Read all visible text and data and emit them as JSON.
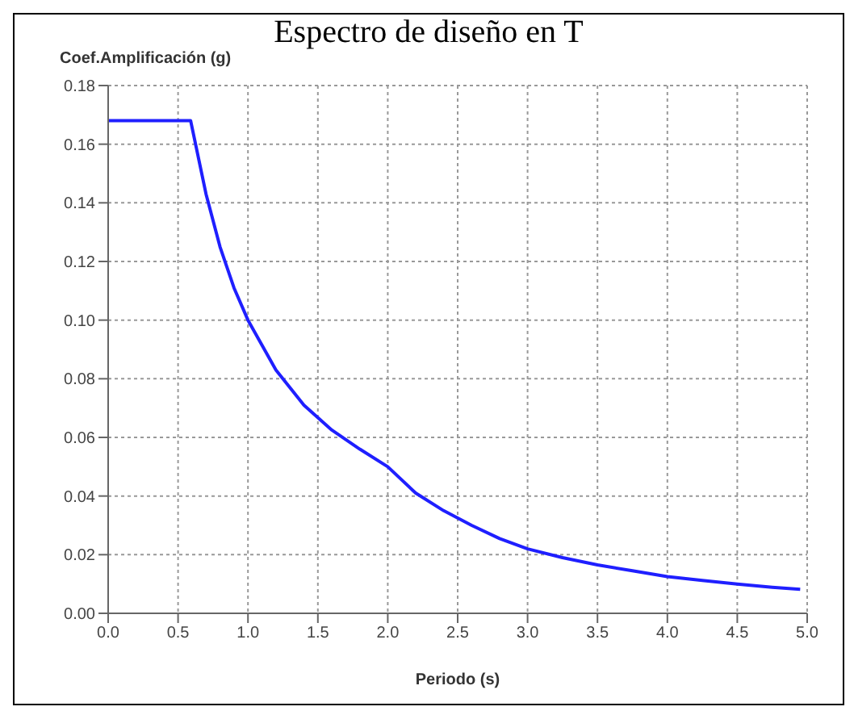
{
  "chart_data": {
    "type": "line",
    "title": "Espectro de diseño en T",
    "ylabel": "Coef.Amplificación (g)",
    "xlabel": "Periodo (s)",
    "x": [
      0,
      0.59,
      0.7,
      0.8,
      0.9,
      1.0,
      1.2,
      1.4,
      1.6,
      1.8,
      2.0,
      2.2,
      2.4,
      2.6,
      2.8,
      3.0,
      3.25,
      3.5,
      3.75,
      4.0,
      4.25,
      4.5,
      4.75,
      4.95
    ],
    "series": [
      {
        "color": "#1f1fff",
        "values": [
          0.168,
          0.168,
          0.143,
          0.125,
          0.111,
          0.1,
          0.083,
          0.071,
          0.0625,
          0.056,
          0.05,
          0.041,
          0.035,
          0.03,
          0.0255,
          0.022,
          0.019,
          0.0165,
          0.0145,
          0.0125,
          0.0112,
          0.01,
          0.0089,
          0.0082
        ]
      }
    ],
    "xlim": [
      0,
      5
    ],
    "ylim": [
      0,
      0.18
    ],
    "xticks": [
      {
        "value": 0,
        "label": "0.0"
      },
      {
        "value": 0.5,
        "label": "0.5"
      },
      {
        "value": 1,
        "label": "1.0"
      },
      {
        "value": 1.5,
        "label": "1.5"
      },
      {
        "value": 2,
        "label": "2.0"
      },
      {
        "value": 2.5,
        "label": "2.5"
      },
      {
        "value": 3,
        "label": "3.0"
      },
      {
        "value": 3.5,
        "label": "3.5"
      },
      {
        "value": 4,
        "label": "4.0"
      },
      {
        "value": 4.5,
        "label": "4.5"
      },
      {
        "value": 5,
        "label": "5.0"
      }
    ],
    "yticks": [
      {
        "value": 0,
        "label": "0.00"
      },
      {
        "value": 0.02,
        "label": "0.02"
      },
      {
        "value": 0.04,
        "label": "0.04"
      },
      {
        "value": 0.06,
        "label": "0.06"
      },
      {
        "value": 0.08,
        "label": "0.08"
      },
      {
        "value": 0.1,
        "label": "0.10"
      },
      {
        "value": 0.12,
        "label": "0.12"
      },
      {
        "value": 0.14,
        "label": "0.14"
      },
      {
        "value": 0.16,
        "label": "0.16"
      },
      {
        "value": 0.18,
        "label": "0.18"
      }
    ],
    "grid": true,
    "legend": false,
    "marker": "none",
    "line_style": "solid"
  }
}
